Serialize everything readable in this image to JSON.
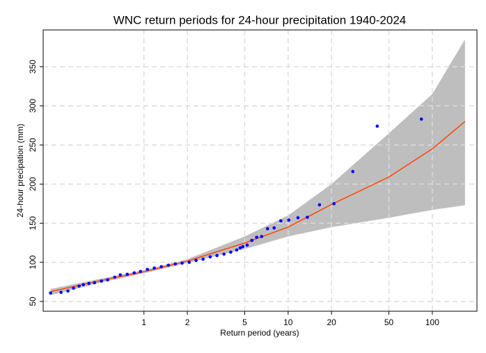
{
  "chart_data": {
    "type": "return-period",
    "title": "WNC return periods for 24-hour precipitation 1940-2024",
    "x_label": "Return period (years)",
    "y_label": "24-hour precipation (mm)",
    "x_scale": "log",
    "xlim": [
      0.2,
      204
    ],
    "ylim": [
      37.5,
      397
    ],
    "xticks": [
      1,
      2,
      5,
      10,
      20,
      50,
      100
    ],
    "yticks": [
      50,
      100,
      150,
      200,
      250,
      300,
      350
    ],
    "grid": true,
    "band": {
      "color": "#bebebe",
      "x": [
        0.225,
        0.5,
        1,
        2,
        5,
        10,
        20,
        50,
        100,
        168.6
      ],
      "lower": [
        58,
        74,
        86,
        99,
        117,
        133,
        145,
        157,
        167,
        173
      ],
      "upper": [
        66,
        79,
        90,
        104,
        133,
        160,
        200,
        265,
        315,
        385
      ]
    },
    "fit": {
      "color": "#ff4500",
      "x": [
        0.225,
        0.53,
        1,
        2,
        5,
        10,
        20,
        50,
        100,
        168.6
      ],
      "values": [
        62.5,
        77.6,
        88,
        101.6,
        124.7,
        145,
        174,
        209,
        245,
        280
      ]
    },
    "points": {
      "color": "#0000ff",
      "x": [
        0.225,
        0.266,
        0.297,
        0.325,
        0.355,
        0.38,
        0.415,
        0.454,
        0.507,
        0.56,
        0.627,
        0.685,
        0.766,
        0.856,
        0.946,
        1.057,
        1.18,
        1.32,
        1.476,
        1.65,
        1.84,
        2.06,
        2.3,
        2.57,
        2.88,
        3.21,
        3.59,
        4.0,
        4.4,
        4.65,
        4.85,
        5.2,
        5.6,
        6.05,
        6.55,
        7.2,
        8.0,
        8.9,
        10.1,
        11.7,
        13.6,
        16.5,
        20.8,
        28.1,
        41.5,
        84
      ],
      "y": [
        60.7,
        61.6,
        63.3,
        67,
        69.6,
        71.4,
        73,
        74,
        76,
        77.6,
        81,
        84,
        84.7,
        86.5,
        88.3,
        91,
        92.7,
        94.5,
        96.3,
        98,
        99,
        100,
        102.5,
        104,
        107,
        108.7,
        110.5,
        113,
        115.8,
        118.5,
        120,
        122,
        128,
        132,
        133,
        143,
        144,
        153,
        154,
        157,
        157.6,
        173.5,
        175,
        216,
        274,
        283
      ]
    }
  }
}
